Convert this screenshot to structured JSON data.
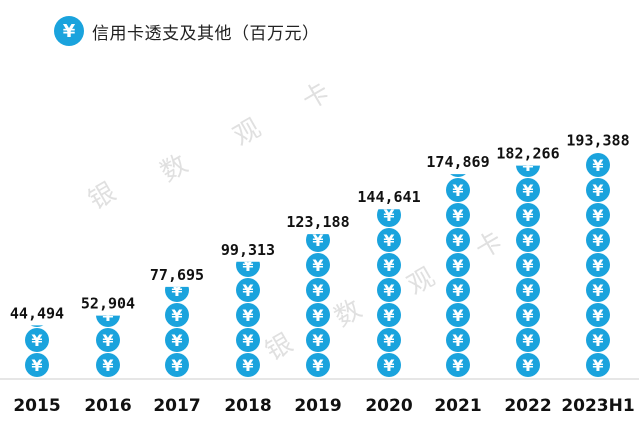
{
  "legend": {
    "label": "信用卡透支及其他（百万元）",
    "icon": "yen-coin-icon"
  },
  "watermark": {
    "chars": [
      "银",
      "数",
      "观",
      "卡"
    ]
  },
  "colors": {
    "coin": "#1AA3DD",
    "coin_symbol": "#ffffff",
    "baseline": "#cccccc",
    "text": "#111111"
  },
  "chart_data": {
    "type": "bar",
    "title": "信用卡透支及其他（百万元）",
    "categories": [
      "2015",
      "2016",
      "2017",
      "2018",
      "2019",
      "2020",
      "2021",
      "2022",
      "2023H1"
    ],
    "values": [
      44494,
      52904,
      77695,
      99313,
      123188,
      144641,
      174869,
      182266,
      193388
    ],
    "value_labels": [
      "44,494",
      "52,904",
      "77,695",
      "99,313",
      "123,188",
      "144,641",
      "174,869",
      "182,266",
      "193,388"
    ],
    "marker": "yen-coin-icon",
    "grid": false,
    "legend_position": "top-left"
  }
}
